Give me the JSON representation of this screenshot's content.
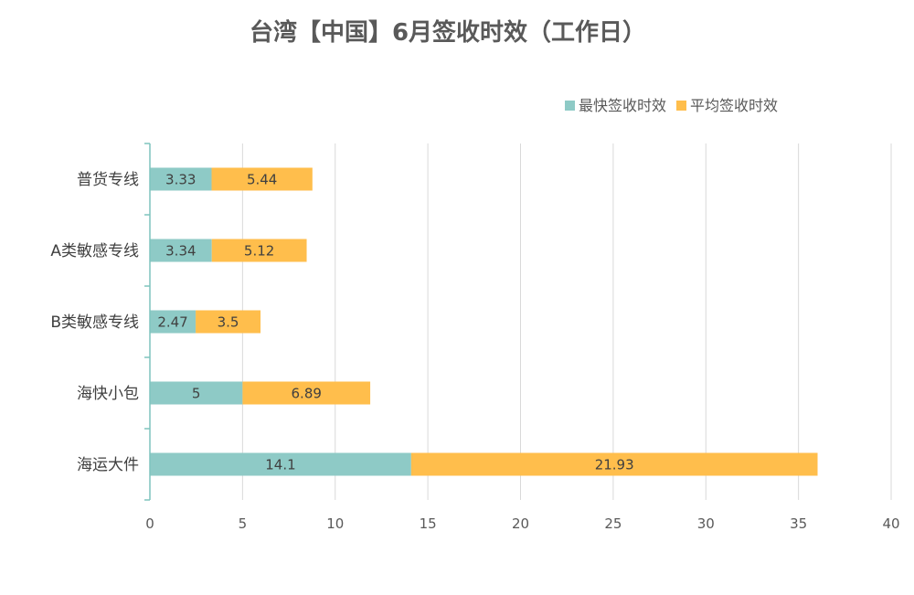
{
  "chart_data": {
    "type": "bar",
    "orientation": "horizontal",
    "stacked": true,
    "title": "台湾【中国】6月签收时效（工作日）",
    "categories": [
      "普货专线",
      "A类敏感专线",
      "B类敏感专线",
      "海快小包",
      "海运大件"
    ],
    "series": [
      {
        "name": "最快签收时效",
        "color": "#8ECAC6",
        "values": [
          3.33,
          3.34,
          2.47,
          5,
          14.1
        ]
      },
      {
        "name": "平均签收时效",
        "color": "#FFBE4C",
        "values": [
          5.44,
          5.12,
          3.5,
          6.89,
          21.93
        ]
      }
    ],
    "xlim": [
      0,
      40
    ],
    "xticks": [
      0,
      5,
      10,
      15,
      20,
      25,
      30,
      35,
      40
    ],
    "grid": true,
    "legend_position": "top-right",
    "colors": {
      "axis": "#7FC4BD",
      "grid": "#D9D9D9"
    }
  }
}
